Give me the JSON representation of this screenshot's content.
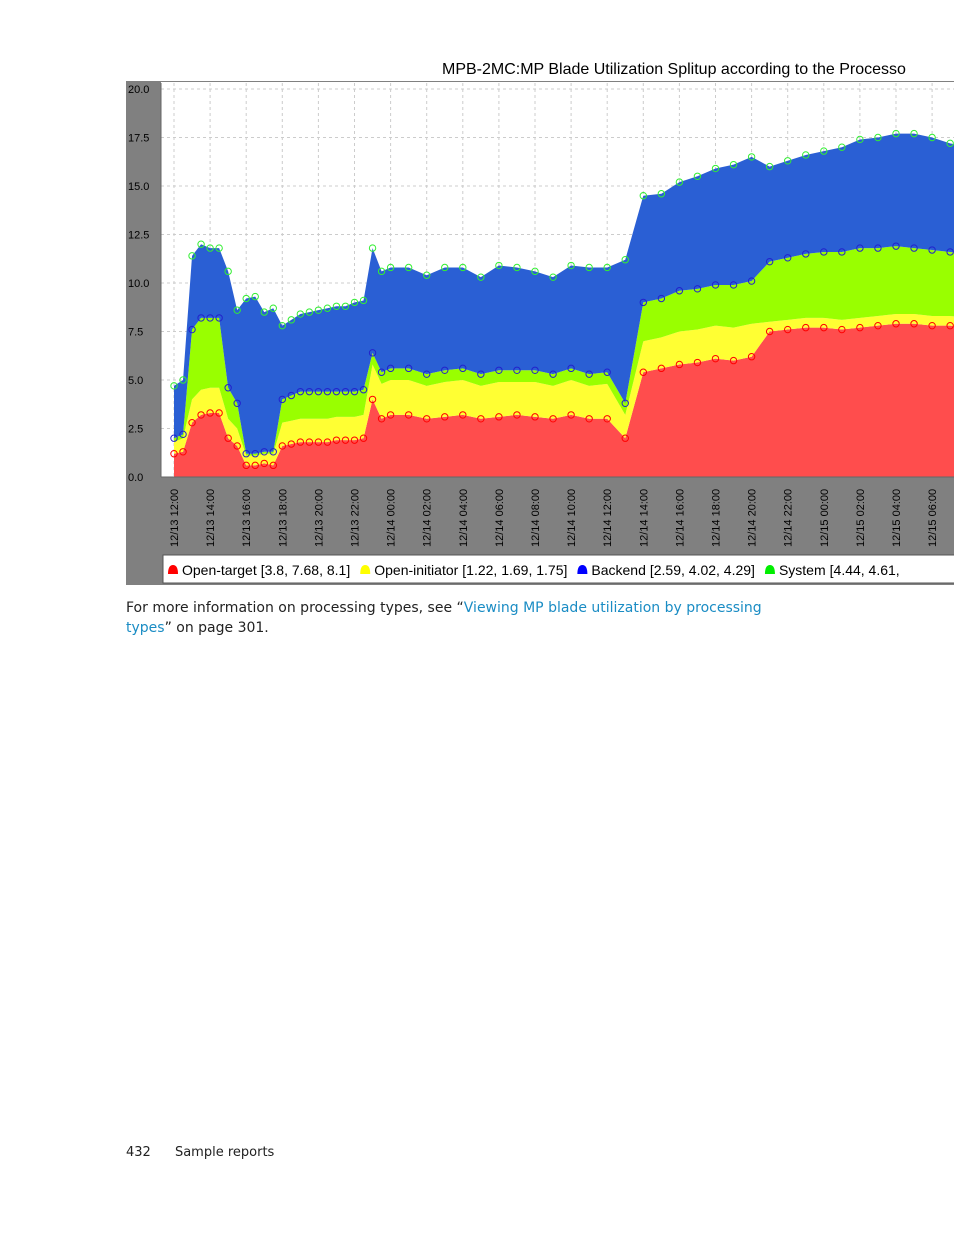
{
  "chart_data": {
    "type": "area",
    "stacked": true,
    "title": "MPB-2MC:MP Blade Utilization Splitup according to the Processo",
    "ylim": [
      0,
      20
    ],
    "yticks": [
      "0.0",
      "2.5",
      "5.0",
      "7.5",
      "10.0",
      "12.5",
      "15.0",
      "17.5",
      "20.0"
    ],
    "xticks": [
      "12/13 12:00",
      "12/13 14:00",
      "12/13 16:00",
      "12/13 18:00",
      "12/13 20:00",
      "12/13 22:00",
      "12/14 00:00",
      "12/14 02:00",
      "12/14 04:00",
      "12/14 06:00",
      "12/14 08:00",
      "12/14 10:00",
      "12/14 12:00",
      "12/14 14:00",
      "12/14 16:00",
      "12/14 18:00",
      "12/14 20:00",
      "12/14 22:00",
      "12/15 00:00",
      "12/15 02:00",
      "12/15 04:00",
      "12/15 06:00"
    ],
    "grid": true,
    "legend_position": "bottom",
    "x_hours": [
      0,
      0.5,
      1,
      1.5,
      2,
      2.5,
      3,
      3.5,
      4,
      4.5,
      5,
      5.5,
      6,
      6.5,
      7,
      7.5,
      8,
      8.5,
      9,
      9.5,
      10,
      10.5,
      11,
      11.5,
      12,
      13,
      14,
      15,
      16,
      17,
      18,
      19,
      20,
      21,
      22,
      23,
      24,
      25,
      26,
      27,
      28,
      29,
      30,
      31,
      32,
      33,
      34,
      35,
      36,
      37,
      38,
      39,
      40,
      41,
      42,
      43,
      44,
      45,
      46,
      47
    ],
    "series": [
      {
        "name": "Open-target",
        "color": "#ff4d4d",
        "values": [
          1.2,
          1.3,
          2.8,
          3.2,
          3.3,
          3.3,
          2.0,
          1.6,
          0.6,
          0.6,
          0.7,
          0.6,
          1.6,
          1.7,
          1.8,
          1.8,
          1.8,
          1.8,
          1.9,
          1.9,
          1.9,
          2.0,
          4.0,
          3.0,
          3.2,
          3.2,
          3.0,
          3.1,
          3.2,
          3.0,
          3.1,
          3.2,
          3.1,
          3.0,
          3.2,
          3.0,
          3.0,
          2.0,
          5.4,
          5.6,
          5.8,
          5.9,
          6.1,
          6.0,
          6.2,
          7.5,
          7.6,
          7.7,
          7.7,
          7.6,
          7.7,
          7.8,
          7.9,
          7.9,
          7.8,
          7.8,
          7.7,
          7.7,
          7.6,
          7.6
        ]
      },
      {
        "name": "Open-initiator",
        "color": "#ffff33",
        "values": [
          0.6,
          0.7,
          1.2,
          1.3,
          1.3,
          1.3,
          1.0,
          0.9,
          0.5,
          0.5,
          0.5,
          0.6,
          1.2,
          1.2,
          1.2,
          1.2,
          1.2,
          1.2,
          1.2,
          1.2,
          1.2,
          1.2,
          1.8,
          1.8,
          1.8,
          1.8,
          1.7,
          1.8,
          1.8,
          1.7,
          1.8,
          1.7,
          1.8,
          1.7,
          1.8,
          1.7,
          1.8,
          1.2,
          1.6,
          1.6,
          1.7,
          1.7,
          1.7,
          1.7,
          1.7,
          0.5,
          0.5,
          0.5,
          0.5,
          0.5,
          0.5,
          0.5,
          0.5,
          0.5,
          0.5,
          0.5,
          0.5,
          0.5,
          0.5,
          0.5
        ]
      },
      {
        "name": "System",
        "color": "#99ff00",
        "values": [
          0.2,
          0.2,
          3.6,
          3.7,
          3.6,
          3.6,
          1.6,
          1.3,
          0.1,
          0.1,
          0.1,
          0.1,
          1.2,
          1.3,
          1.4,
          1.4,
          1.4,
          1.4,
          1.3,
          1.3,
          1.3,
          1.3,
          0.6,
          0.6,
          0.6,
          0.6,
          0.6,
          0.6,
          0.6,
          0.6,
          0.6,
          0.6,
          0.6,
          0.6,
          0.6,
          0.6,
          0.6,
          0.6,
          2.0,
          2.0,
          2.1,
          2.1,
          2.1,
          2.2,
          2.2,
          3.1,
          3.2,
          3.3,
          3.4,
          3.5,
          3.6,
          3.5,
          3.5,
          3.4,
          3.4,
          3.3,
          3.3,
          3.2,
          3.2,
          3.2
        ]
      },
      {
        "name": "Backend",
        "color": "#2a5fd4",
        "values": [
          2.7,
          2.8,
          3.8,
          3.8,
          3.6,
          3.6,
          6.0,
          4.8,
          8.0,
          8.1,
          7.2,
          7.4,
          3.8,
          3.9,
          4.0,
          4.1,
          4.2,
          4.3,
          4.4,
          4.4,
          4.6,
          4.6,
          5.4,
          5.2,
          5.2,
          5.2,
          5.1,
          5.3,
          5.2,
          5.0,
          5.4,
          5.3,
          5.1,
          5.0,
          5.3,
          5.5,
          5.4,
          7.4,
          5.5,
          5.4,
          5.6,
          5.8,
          6.0,
          6.2,
          6.4,
          4.9,
          5.0,
          5.1,
          5.2,
          5.4,
          5.6,
          5.7,
          5.8,
          5.9,
          5.8,
          5.6,
          5.5,
          5.4,
          5.3,
          5.2
        ]
      }
    ],
    "legend": [
      {
        "name": "Open-target",
        "bracket": "[3.8, 7.68, 8.1]",
        "color": "#ff0000"
      },
      {
        "name": "Open-initiator",
        "bracket": "[1.22, 1.69, 1.75]",
        "color": "#ffff00"
      },
      {
        "name": "Backend",
        "bracket": "[2.59, 4.02, 4.29]",
        "color": "#0000ff"
      },
      {
        "name": "System",
        "bracket": "[4.44, 4.61,",
        "color": "#00ee00"
      }
    ]
  },
  "text": {
    "para_before": "For more information on processing types, see “",
    "para_link": "Viewing MP blade utilization by processing types",
    "para_after": "” on page 301.",
    "footer_page": "432",
    "footer_section": "Sample reports"
  }
}
